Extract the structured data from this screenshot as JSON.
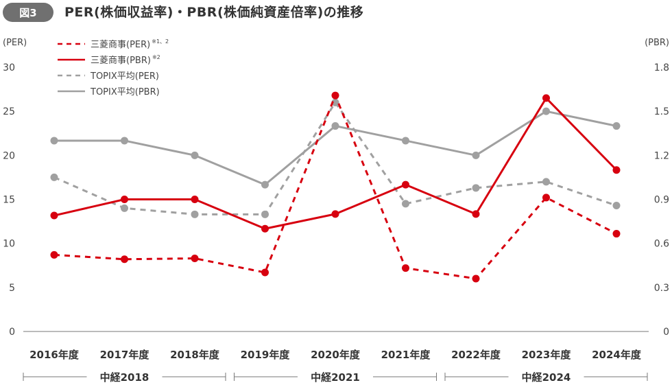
{
  "header": {
    "badge": "図3",
    "title": "PER(株価収益率)・PBR(株価純資産倍率)の推移"
  },
  "chart_data": {
    "type": "line",
    "title": "PER(株価収益率)・PBR(株価純資産倍率)の推移",
    "categories": [
      "2016年度",
      "2017年度",
      "2018年度",
      "2019年度",
      "2020年度",
      "2021年度",
      "2022年度",
      "2023年度",
      "2024年度"
    ],
    "y_left": {
      "label": "(PER)",
      "ticks": [
        "0",
        "5",
        "10",
        "15",
        "20",
        "25",
        "30"
      ],
      "range": [
        0,
        30
      ]
    },
    "y_right": {
      "label": "(PBR)",
      "ticks": [
        "0",
        "0.3",
        "0.6",
        "0.9",
        "1.2",
        "1.5",
        "1.8"
      ],
      "range": [
        0,
        1.8
      ]
    },
    "grid": false,
    "legend_position": "top-left",
    "series": [
      {
        "name": "三菱商事(PER)",
        "note": "※1、2",
        "axis": "left",
        "style": "dashed",
        "color": "#d7000f",
        "values": [
          8.7,
          8.2,
          8.3,
          6.7,
          26.8,
          7.2,
          6.0,
          15.2,
          11.1
        ]
      },
      {
        "name": "三菱商事(PBR)",
        "note": "※2",
        "axis": "right",
        "style": "solid",
        "color": "#d7000f",
        "values": [
          0.79,
          0.9,
          0.9,
          0.7,
          0.8,
          1.0,
          0.8,
          1.59,
          1.1
        ]
      },
      {
        "name": "TOPIX平均(PER)",
        "note": "",
        "axis": "left",
        "style": "dashed",
        "color": "#a0a0a0",
        "values": [
          17.5,
          14.0,
          13.3,
          13.3,
          26.0,
          14.5,
          16.3,
          17.0,
          14.3
        ]
      },
      {
        "name": "TOPIX平均(PBR)",
        "note": "",
        "axis": "right",
        "style": "solid",
        "color": "#a0a0a0",
        "values": [
          1.3,
          1.3,
          1.2,
          1.0,
          1.4,
          1.3,
          1.2,
          1.5,
          1.4
        ]
      }
    ],
    "periods": [
      {
        "label": "中経2018",
        "from": 0,
        "to": 2
      },
      {
        "label": "中経2021",
        "from": 3,
        "to": 5
      },
      {
        "label": "中経2024",
        "from": 6,
        "to": 8
      }
    ]
  }
}
